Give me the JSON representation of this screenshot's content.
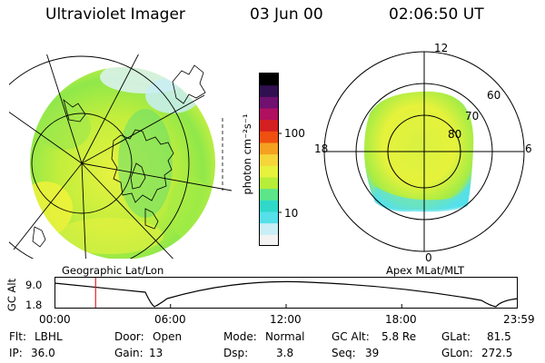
{
  "header": {
    "title": "Ultraviolet Imager",
    "date": "03 Jun 00",
    "time": "02:06:50 UT"
  },
  "maps": {
    "left_label": "Geographic Lat/Lon",
    "right_label": "Apex MLat/MLT",
    "mlt_labels": {
      "top": "12",
      "left": "18",
      "right": "6",
      "bottom": "0"
    },
    "mlat_labels": [
      "60",
      "70",
      "80"
    ]
  },
  "colorbar": {
    "unit_label": "photon cm⁻²s⁻¹",
    "tick_labels": [
      "100",
      "10"
    ],
    "colors": [
      "#f3f3f3",
      "#c9eef5",
      "#55e0ea",
      "#2fd8c9",
      "#5ce689",
      "#b6ee3a",
      "#e6f23c",
      "#f5d53a",
      "#f5a020",
      "#ef5010",
      "#d42020",
      "#b01060",
      "#701070",
      "#301050",
      "#000000"
    ]
  },
  "timeline": {
    "axis_title": "GC Alt",
    "y_labels": [
      "9.0",
      "1.8"
    ],
    "x_labels": [
      "00:00",
      "06:00",
      "12:00",
      "18:00",
      "23:59"
    ],
    "current_time_hours": 2.11,
    "marker_color": "#e02020"
  },
  "info": {
    "row1": [
      {
        "label": "Flt:",
        "value": "LBHL"
      },
      {
        "label": "Door:",
        "value": "Open"
      },
      {
        "label": "Mode:",
        "value": "Normal"
      },
      {
        "label": "GC Alt:",
        "value": "5.8 Re"
      },
      {
        "label": "GLat:",
        "value": "81.5"
      }
    ],
    "row2": [
      {
        "label": "IP:",
        "value": "36.0"
      },
      {
        "label": "Gain:",
        "value": "13"
      },
      {
        "label": "Dsp:",
        "value": "3.8"
      },
      {
        "label": "Seq:",
        "value": "39"
      },
      {
        "label": "GLon:",
        "value": "272.5"
      }
    ]
  }
}
